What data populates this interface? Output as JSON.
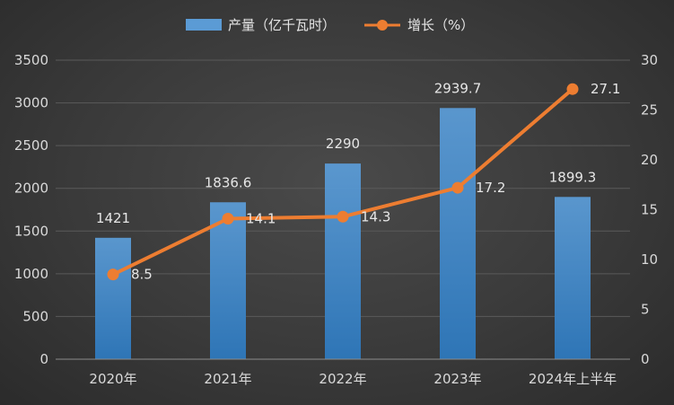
{
  "chart_data": {
    "type": "bar+line",
    "categories": [
      "2020年",
      "2021年",
      "2022年",
      "2023年",
      "2024年上半年"
    ],
    "series": [
      {
        "name": "产量（亿千瓦时）",
        "type": "bar",
        "axis": "left",
        "color": "#5b9bd5",
        "values": [
          1421,
          1836.6,
          2290,
          2939.7,
          1899.3
        ],
        "labels": [
          "1421",
          "1836.6",
          "2290",
          "2939.7",
          "1899.3"
        ]
      },
      {
        "name": "增长（%）",
        "type": "line",
        "axis": "right",
        "color": "#ed7d31",
        "values": [
          8.5,
          14.1,
          14.3,
          17.2,
          27.1
        ],
        "labels": [
          "8.5",
          "14.1",
          "14.3",
          "17.2",
          "27.1"
        ]
      }
    ],
    "y_left": {
      "min": 0,
      "max": 3500,
      "ticks": [
        "0",
        "500",
        "1000",
        "1500",
        "2000",
        "2500",
        "3000",
        "3500"
      ]
    },
    "y_right": {
      "min": 0,
      "max": 30,
      "ticks": [
        "0",
        "5",
        "10",
        "15",
        "20",
        "25",
        "30"
      ]
    },
    "legend_position": "top-center",
    "grid": true
  }
}
